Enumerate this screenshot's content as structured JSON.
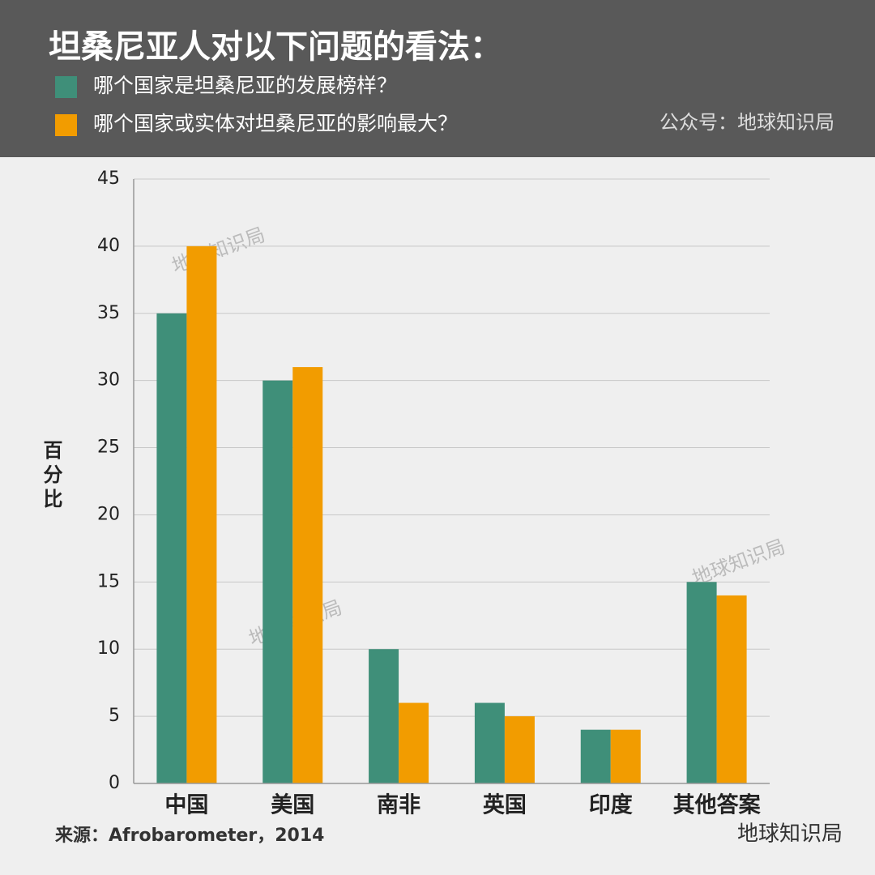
{
  "chart_data": {
    "type": "bar",
    "title": "坦桑尼亚人对以下问题的看法：",
    "credit": "公众号：地球知识局",
    "y_label": "百分比",
    "source": "来源：Afrobarometer，2014",
    "watermark": "地球知识局",
    "footer_brand": "地球知识局",
    "categories": [
      "中国",
      "美国",
      "南非",
      "英国",
      "印度",
      "其他答案"
    ],
    "series": [
      {
        "name": "哪个国家是坦桑尼亚的发展榜样？",
        "color": "#3f8f79",
        "values": [
          35,
          30,
          10,
          6,
          4,
          15
        ]
      },
      {
        "name": "哪个国家或实体对坦桑尼亚的影响最大？",
        "color": "#f29c00",
        "values": [
          40,
          31,
          6,
          5,
          4,
          14
        ]
      }
    ],
    "ylim": [
      0,
      45
    ],
    "yticks": [
      0,
      5,
      10,
      15,
      20,
      25,
      30,
      35,
      40,
      45
    ],
    "grid": true
  }
}
